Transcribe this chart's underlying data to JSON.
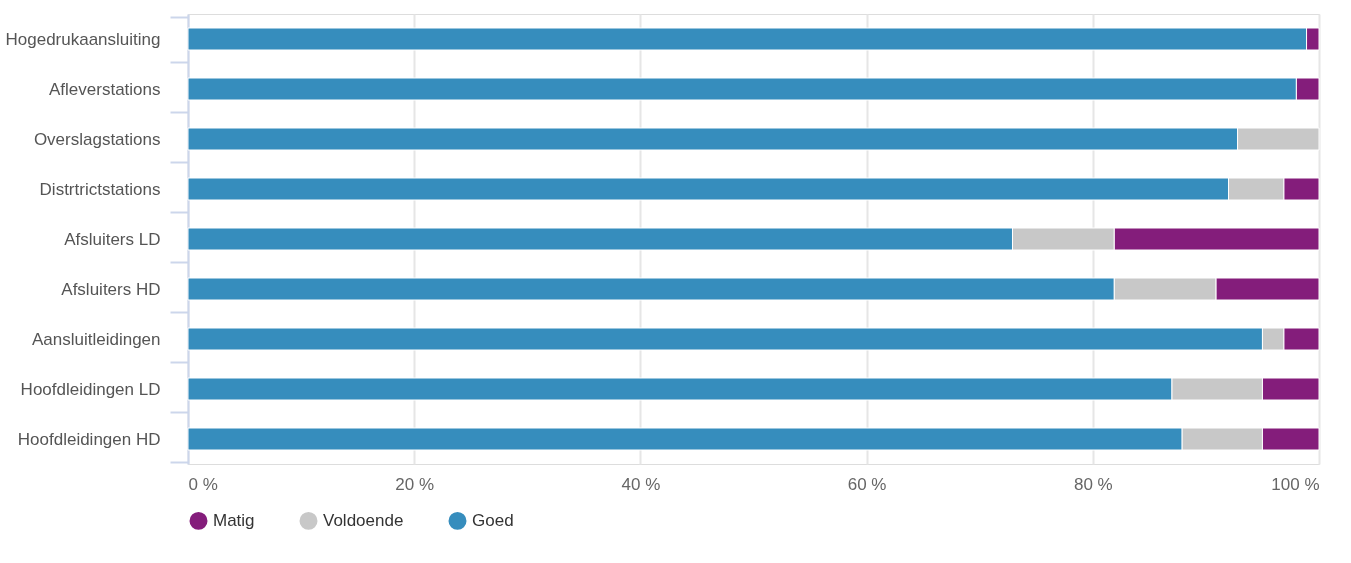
{
  "chart_data": {
    "type": "bar",
    "orientation": "horizontal",
    "stacked": true,
    "categories": [
      "Hogedrukaansluiting",
      "Afleverstations",
      "Overslagstations",
      "Distrtrictstations",
      "Afsluiters LD",
      "Afsluiters HD",
      "Aansluitleidingen",
      "Hoofdleidingen LD",
      "Hoofdleidingen HD"
    ],
    "series": [
      {
        "name": "Goed",
        "color": "#368dbd",
        "values": [
          98.9,
          98,
          92.8,
          92,
          72.9,
          81.9,
          95,
          87,
          87.9
        ]
      },
      {
        "name": "Voldoende",
        "color": "#c8c8c8",
        "values": [
          null,
          null,
          7.2,
          4.9,
          9,
          9,
          1.9,
          8,
          7.1
        ]
      },
      {
        "name": "Matig",
        "color": "#841d7b",
        "values": [
          1.1,
          2,
          null,
          3.1,
          18.1,
          9.1,
          3.1,
          5,
          5
        ]
      }
    ],
    "xlim": [
      0,
      100
    ],
    "xticks": [
      {
        "value": 0,
        "label": "0 %"
      },
      {
        "value": 20,
        "label": "20 %"
      },
      {
        "value": 40,
        "label": "40 %"
      },
      {
        "value": 60,
        "label": "60 %"
      },
      {
        "value": 80,
        "label": "80 %"
      },
      {
        "value": 100,
        "label": "100 %"
      }
    ],
    "grid": "x",
    "legend": "bottom"
  }
}
